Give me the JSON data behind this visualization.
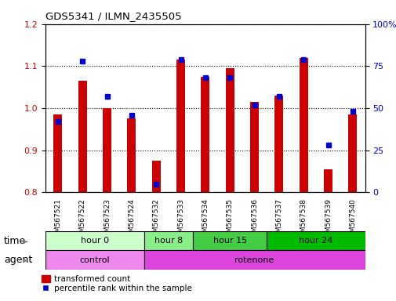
{
  "title": "GDS5341 / ILMN_2435505",
  "samples": [
    "GSM567521",
    "GSM567522",
    "GSM567523",
    "GSM567524",
    "GSM567532",
    "GSM567533",
    "GSM567534",
    "GSM567535",
    "GSM567536",
    "GSM567537",
    "GSM567538",
    "GSM567539",
    "GSM567540"
  ],
  "red_values": [
    0.985,
    1.065,
    1.0,
    0.975,
    0.875,
    1.115,
    1.075,
    1.095,
    1.015,
    1.03,
    1.12,
    0.855,
    0.985
  ],
  "blue_values": [
    42,
    78,
    57,
    46,
    5,
    79,
    68,
    68,
    52,
    57,
    79,
    28,
    48
  ],
  "ylim_left": [
    0.8,
    1.2
  ],
  "ylim_right": [
    0,
    100
  ],
  "yticks_left": [
    0.8,
    0.9,
    1.0,
    1.1,
    1.2
  ],
  "yticks_right": [
    0,
    25,
    50,
    75,
    100
  ],
  "ytick_labels_right": [
    "0",
    "25",
    "50",
    "75",
    "100%"
  ],
  "bar_color": "#cc0000",
  "dot_color": "#0000cc",
  "background_color": "#ffffff",
  "time_groups": [
    {
      "label": "hour 0",
      "start": 0,
      "end": 4,
      "color": "#ccffcc"
    },
    {
      "label": "hour 8",
      "start": 4,
      "end": 6,
      "color": "#88ee88"
    },
    {
      "label": "hour 15",
      "start": 6,
      "end": 9,
      "color": "#44cc44"
    },
    {
      "label": "hour 24",
      "start": 9,
      "end": 13,
      "color": "#00bb00"
    }
  ],
  "agent_groups": [
    {
      "label": "control",
      "start": 0,
      "end": 4,
      "color": "#ee88ee"
    },
    {
      "label": "rotenone",
      "start": 4,
      "end": 13,
      "color": "#dd44dd"
    }
  ],
  "legend_red": "transformed count",
  "legend_blue": "percentile rank within the sample",
  "row_label_time": "time",
  "row_label_agent": "agent"
}
